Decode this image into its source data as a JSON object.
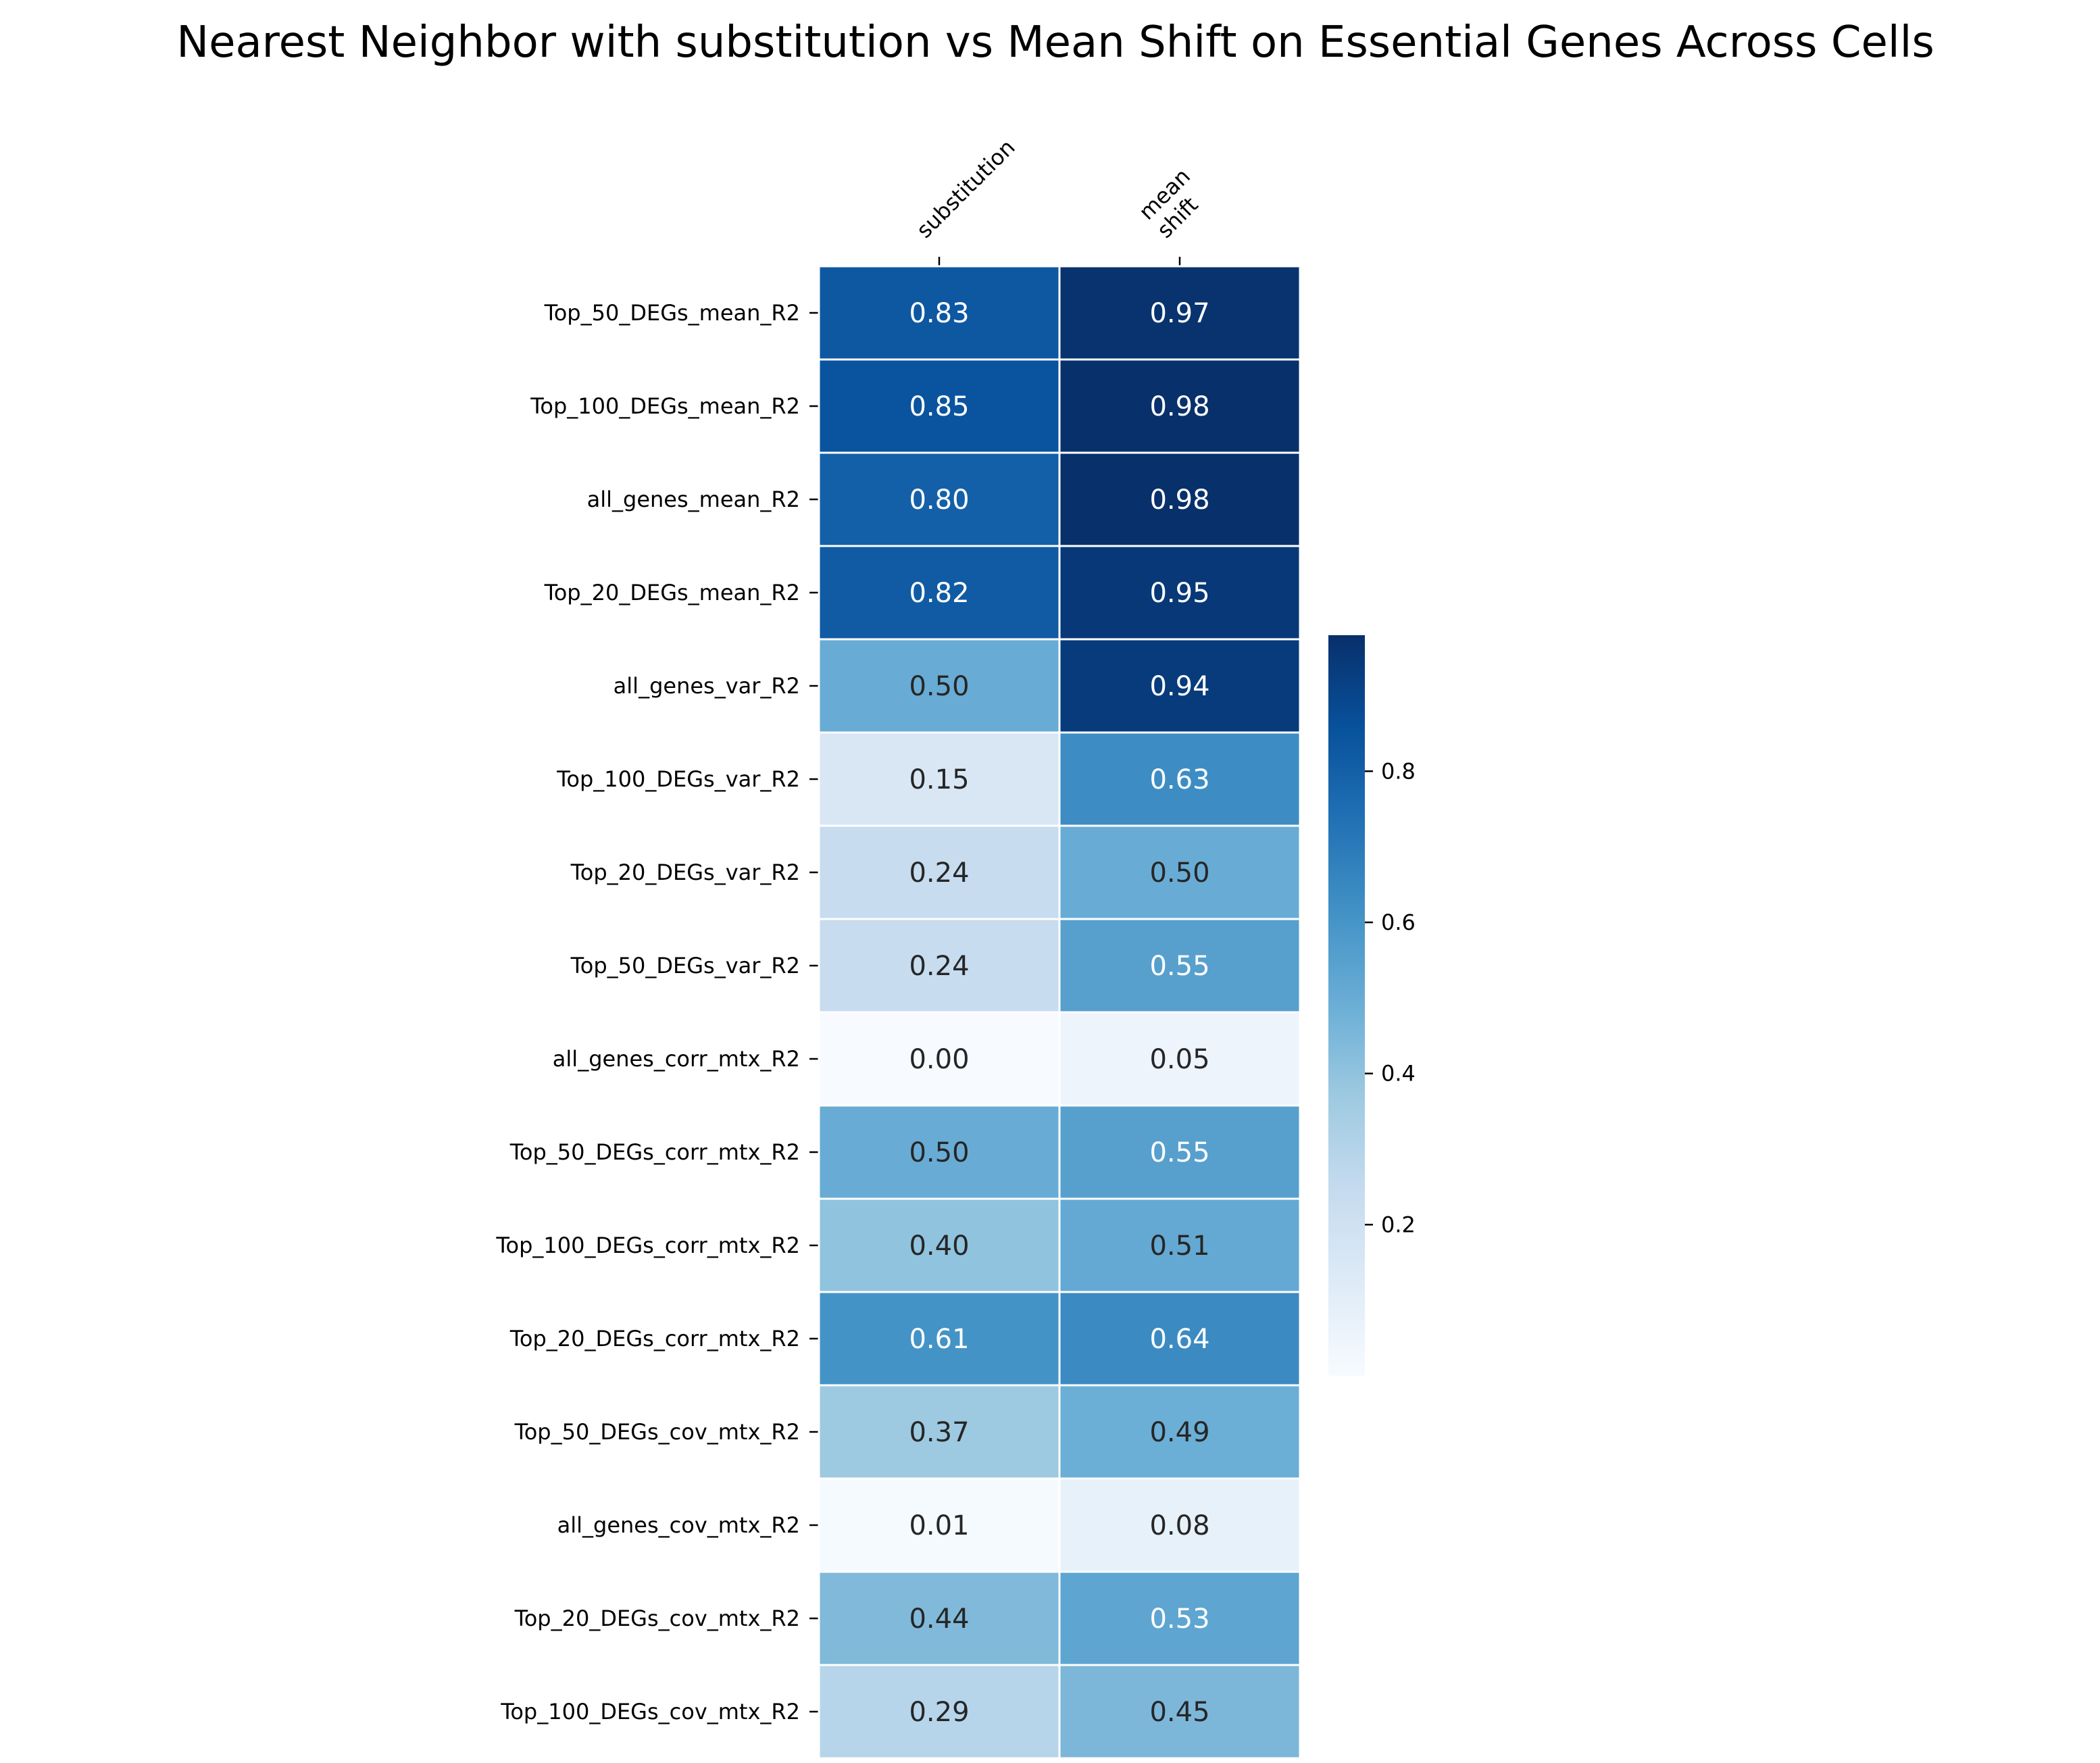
{
  "chart_data": {
    "type": "heatmap",
    "title": "Nearest Neighbor with substitution vs Mean Shift on Essential Genes Across Cells",
    "columns": [
      [
        "substitution"
      ],
      [
        "mean",
        "shift"
      ]
    ],
    "rows": [
      "Top_50_DEGs_mean_R2",
      "Top_100_DEGs_mean_R2",
      "all_genes_mean_R2",
      "Top_20_DEGs_mean_R2",
      "all_genes_var_R2",
      "Top_100_DEGs_var_R2",
      "Top_20_DEGs_var_R2",
      "Top_50_DEGs_var_R2",
      "all_genes_corr_mtx_R2",
      "Top_50_DEGs_corr_mtx_R2",
      "Top_100_DEGs_corr_mtx_R2",
      "Top_20_DEGs_corr_mtx_R2",
      "Top_50_DEGs_cov_mtx_R2",
      "all_genes_cov_mtx_R2",
      "Top_20_DEGs_cov_mtx_R2",
      "Top_100_DEGs_cov_mtx_R2"
    ],
    "values": [
      [
        0.83,
        0.97
      ],
      [
        0.85,
        0.98
      ],
      [
        0.8,
        0.98
      ],
      [
        0.82,
        0.95
      ],
      [
        0.5,
        0.94
      ],
      [
        0.15,
        0.63
      ],
      [
        0.24,
        0.5
      ],
      [
        0.24,
        0.55
      ],
      [
        0.0,
        0.05
      ],
      [
        0.5,
        0.55
      ],
      [
        0.4,
        0.51
      ],
      [
        0.61,
        0.64
      ],
      [
        0.37,
        0.49
      ],
      [
        0.01,
        0.08
      ],
      [
        0.44,
        0.53
      ],
      [
        0.29,
        0.45
      ]
    ],
    "value_format": "2 decimals",
    "colormap": "Blues",
    "vmin": 0.0,
    "vmax": 0.98,
    "colorbar_ticks": [
      "0.2",
      "0.4",
      "0.6",
      "0.8"
    ],
    "colors": {
      "cmap_stops": [
        "#f7fbff",
        "#deebf7",
        "#c6dbef",
        "#9ecae1",
        "#6baed6",
        "#4292c6",
        "#2171b5",
        "#08519c",
        "#08306b"
      ],
      "cell_border": "#ffffff",
      "text_dark": "#262626",
      "text_light": "#ffffff"
    }
  }
}
